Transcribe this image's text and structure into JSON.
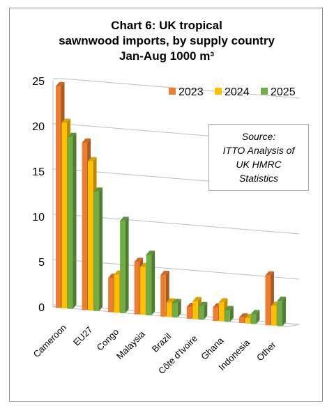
{
  "chart_data": {
    "type": "bar",
    "title_lines": [
      "Chart 6: UK tropical",
      "sawnwood imports, by supply country",
      "Jan-Aug 1000 m³"
    ],
    "categories": [
      "Cameroon",
      "EU27",
      "Congo",
      "Malaysia",
      "Brazil",
      "Côte d'Ivoire",
      "Ghana",
      "Indonesia",
      "Other"
    ],
    "series": [
      {
        "name": "2023",
        "color": "#ed7d31",
        "values": [
          24.5,
          18.5,
          3.8,
          5.8,
          4.6,
          1.3,
          1.5,
          0.6,
          5.5
        ]
      },
      {
        "name": "2024",
        "color": "#ffc000",
        "values": [
          20.5,
          16.5,
          4.2,
          5.3,
          1.6,
          2.0,
          2.1,
          0.6,
          2.2
        ]
      },
      {
        "name": "2025",
        "color": "#70ad47",
        "values": [
          19.0,
          13.2,
          10.2,
          6.7,
          1.6,
          1.5,
          1.3,
          1.1,
          2.8
        ]
      }
    ],
    "yticks": [
      "0",
      "5",
      "10",
      "15",
      "20",
      "25"
    ],
    "ylim": [
      0,
      25
    ],
    "grid": true,
    "legend": "top-right",
    "annotation_lines": [
      "Source:",
      "ITTO Analysis of",
      "UK HMRC",
      "Statistics"
    ]
  }
}
